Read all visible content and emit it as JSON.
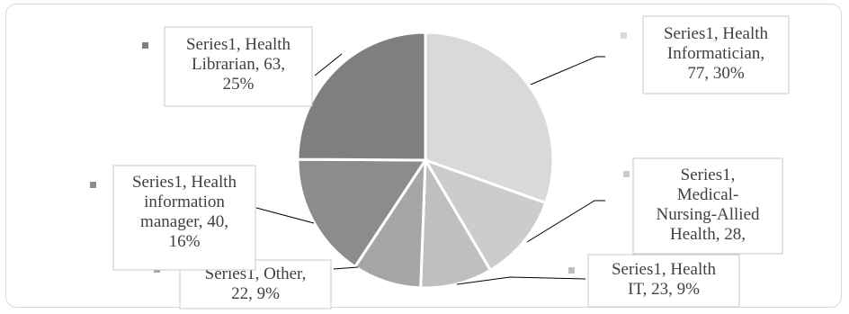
{
  "chart_data": {
    "type": "pie",
    "title": "",
    "series_name": "Series1",
    "categories": [
      "Health Informatician",
      "Medical-Nursing-Allied Health",
      "Health IT",
      "Other",
      "Health information manager",
      "Health Librarian"
    ],
    "values": [
      77,
      28,
      23,
      22,
      40,
      63
    ],
    "percents": [
      "30%",
      "11%",
      "9%",
      "9%",
      "16%",
      "25%"
    ],
    "colors": [
      "#d9d9d9",
      "#cccccc",
      "#bfbfbf",
      "#a6a6a6",
      "#8c8c8c",
      "#7f7f7f"
    ],
    "labels": [
      [
        "Series1, Health",
        "Informatician,",
        "77, 30%"
      ],
      [
        "Series1,",
        "Medical-",
        "Nursing-Allied",
        "Health, 28,"
      ],
      [
        "Series1, Health",
        "IT, 23, 9%"
      ],
      [
        "Series1, Other,",
        "22, 9%"
      ],
      [
        "Series1, Health",
        "information",
        "manager, 40,",
        "16%"
      ],
      [
        "Series1, Health",
        "Librarian, 63,",
        "25%"
      ]
    ]
  }
}
